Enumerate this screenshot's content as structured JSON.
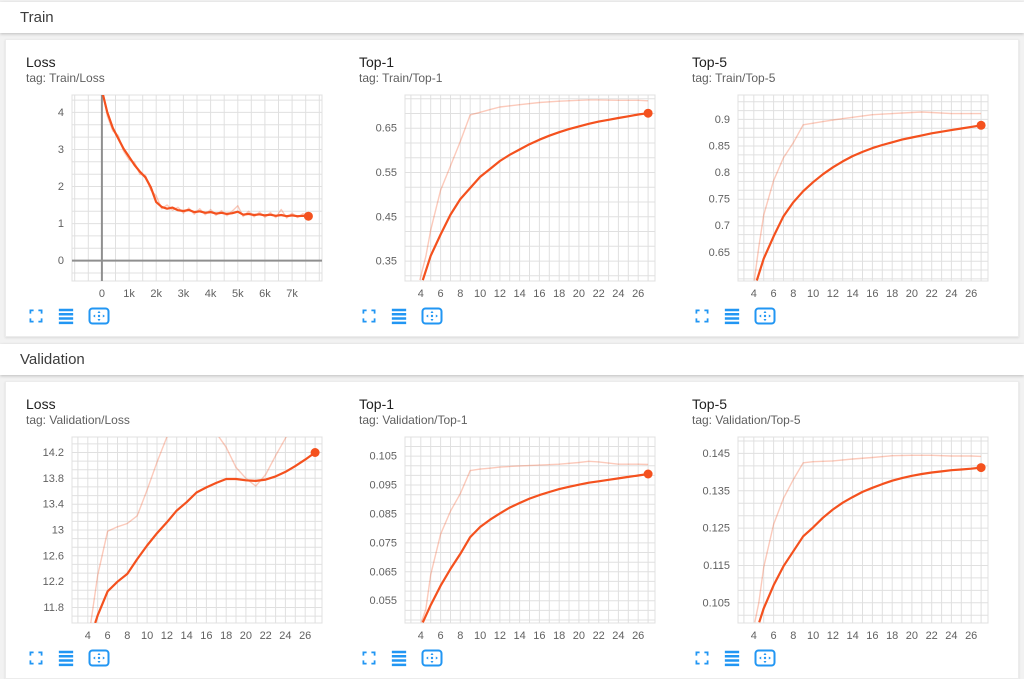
{
  "colors": {
    "accent_orange": "#f4511e",
    "raw_line_opacity": 0.3,
    "grid": "#e0e0e0",
    "zero_line": "#8f8f8f",
    "icon_blue": "#2196f3"
  },
  "sections": [
    {
      "title": "Train"
    },
    {
      "title": "Validation"
    }
  ],
  "chart_data": [
    {
      "type": "line",
      "section": 0,
      "title": "Loss",
      "tag": "tag: Train/Loss",
      "x_domain": [
        -1100,
        8100
      ],
      "y_domain": [
        -0.55,
        4.47
      ],
      "x_grid_step": 500,
      "y_grid_step": 0.33333,
      "x_ticks": {
        "values": [
          0,
          1000,
          2000,
          3000,
          4000,
          5000,
          6000,
          7000
        ],
        "labels": [
          "0",
          "1k",
          "2k",
          "3k",
          "4k",
          "5k",
          "6k",
          "7k"
        ]
      },
      "y_ticks": {
        "values": [
          0,
          1,
          2,
          3,
          4
        ],
        "labels": [
          "0",
          "1",
          "2",
          "3",
          "4"
        ]
      },
      "zero_lines": true,
      "series": [
        {
          "name": "raw",
          "x": [
            0,
            200,
            400,
            600,
            800,
            1000,
            1200,
            1400,
            1600,
            1800,
            2000,
            2200,
            2400,
            2600,
            2800,
            3000,
            3200,
            3400,
            3600,
            3800,
            4000,
            4200,
            4400,
            4600,
            4800,
            5000,
            5200,
            5400,
            5600,
            5800,
            6000,
            6200,
            6400,
            6600,
            6800,
            7000,
            7200,
            7400,
            7600
          ],
          "y": [
            4.65,
            3.9,
            3.5,
            3.38,
            2.95,
            2.72,
            2.65,
            2.33,
            2.3,
            1.9,
            1.75,
            1.4,
            1.5,
            1.36,
            1.44,
            1.28,
            1.42,
            1.25,
            1.4,
            1.24,
            1.38,
            1.22,
            1.35,
            1.21,
            1.34,
            1.48,
            1.19,
            1.33,
            1.18,
            1.31,
            1.17,
            1.3,
            1.16,
            1.38,
            1.15,
            1.28,
            1.16,
            1.27,
            1.21
          ]
        },
        {
          "name": "smoothed",
          "end_marker": true,
          "x": [
            0,
            200,
            400,
            600,
            800,
            1000,
            1200,
            1400,
            1600,
            1800,
            2000,
            2200,
            2400,
            2600,
            2800,
            3000,
            3200,
            3400,
            3600,
            3800,
            4000,
            4200,
            4400,
            4600,
            4800,
            5000,
            5200,
            5400,
            5600,
            5800,
            6000,
            6200,
            6400,
            6600,
            6800,
            7000,
            7200,
            7400,
            7600
          ],
          "y": [
            4.6,
            4.0,
            3.58,
            3.3,
            3.02,
            2.8,
            2.58,
            2.4,
            2.25,
            1.98,
            1.58,
            1.45,
            1.4,
            1.43,
            1.36,
            1.34,
            1.37,
            1.31,
            1.33,
            1.29,
            1.31,
            1.27,
            1.29,
            1.26,
            1.28,
            1.32,
            1.24,
            1.26,
            1.23,
            1.25,
            1.22,
            1.24,
            1.21,
            1.23,
            1.2,
            1.22,
            1.2,
            1.21,
            1.2
          ]
        }
      ]
    },
    {
      "type": "line",
      "section": 0,
      "title": "Top-1",
      "tag": "tag: Train/Top-1",
      "x_domain": [
        2.4,
        27.7
      ],
      "y_domain": [
        0.305,
        0.725
      ],
      "x_grid_step": 1,
      "y_grid_step": 0.033333,
      "x_ticks": {
        "values": [
          4,
          6,
          8,
          10,
          12,
          14,
          16,
          18,
          20,
          22,
          24,
          26
        ],
        "labels": [
          "4",
          "6",
          "8",
          "10",
          "12",
          "14",
          "16",
          "18",
          "20",
          "22",
          "24",
          "26"
        ]
      },
      "y_ticks": {
        "values": [
          0.35,
          0.45,
          0.55,
          0.65
        ],
        "labels": [
          "0.35",
          "0.45",
          "0.55",
          "0.65"
        ]
      },
      "zero_lines": false,
      "series": [
        {
          "name": "raw",
          "x": [
            3.9,
            4.5,
            5,
            6,
            7,
            8,
            9,
            10,
            11,
            12,
            14,
            16,
            18,
            20,
            21,
            22,
            24,
            26,
            27
          ],
          "y": [
            0.307,
            0.36,
            0.42,
            0.51,
            0.565,
            0.62,
            0.68,
            0.686,
            0.692,
            0.698,
            0.703,
            0.708,
            0.711,
            0.713,
            0.714,
            0.714,
            0.713,
            0.713,
            0.712
          ]
        },
        {
          "name": "smoothed",
          "end_marker": true,
          "x": [
            4.2,
            5,
            6,
            7,
            8,
            9,
            10,
            11,
            12,
            13,
            14,
            15,
            16,
            17,
            18,
            19,
            20,
            21,
            22,
            23,
            24,
            25,
            26,
            27
          ],
          "y": [
            0.307,
            0.362,
            0.41,
            0.455,
            0.49,
            0.515,
            0.54,
            0.558,
            0.576,
            0.59,
            0.602,
            0.614,
            0.624,
            0.633,
            0.641,
            0.648,
            0.654,
            0.66,
            0.665,
            0.669,
            0.673,
            0.677,
            0.681,
            0.684
          ]
        }
      ]
    },
    {
      "type": "line",
      "section": 0,
      "title": "Top-5",
      "tag": "tag: Train/Top-5",
      "x_domain": [
        2.4,
        27.7
      ],
      "y_domain": [
        0.596,
        0.946
      ],
      "x_grid_step": 1,
      "y_grid_step": 0.016667,
      "x_ticks": {
        "values": [
          4,
          6,
          8,
          10,
          12,
          14,
          16,
          18,
          20,
          22,
          24,
          26
        ],
        "labels": [
          "4",
          "6",
          "8",
          "10",
          "12",
          "14",
          "16",
          "18",
          "20",
          "22",
          "24",
          "26"
        ]
      },
      "y_ticks": {
        "values": [
          0.65,
          0.7,
          0.75,
          0.8,
          0.85,
          0.9
        ],
        "labels": [
          "0.65",
          "0.7",
          "0.75",
          "0.8",
          "0.85",
          "0.9"
        ]
      },
      "zero_lines": false,
      "series": [
        {
          "name": "raw",
          "x": [
            4.05,
            4.5,
            5,
            6,
            7,
            8,
            9,
            10,
            11,
            12,
            14,
            16,
            18,
            20,
            21,
            22,
            24,
            26,
            27
          ],
          "y": [
            0.597,
            0.66,
            0.72,
            0.785,
            0.828,
            0.856,
            0.89,
            0.893,
            0.896,
            0.899,
            0.904,
            0.909,
            0.911,
            0.913,
            0.914,
            0.913,
            0.911,
            0.911,
            0.911
          ]
        },
        {
          "name": "smoothed",
          "end_marker": true,
          "x": [
            4.3,
            5,
            6,
            7,
            8,
            9,
            10,
            11,
            12,
            13,
            14,
            15,
            16,
            17,
            18,
            19,
            20,
            21,
            22,
            23,
            24,
            25,
            26,
            27
          ],
          "y": [
            0.597,
            0.638,
            0.68,
            0.718,
            0.744,
            0.765,
            0.782,
            0.797,
            0.81,
            0.821,
            0.831,
            0.839,
            0.846,
            0.852,
            0.857,
            0.862,
            0.866,
            0.87,
            0.874,
            0.877,
            0.88,
            0.883,
            0.886,
            0.889
          ]
        }
      ]
    },
    {
      "type": "line",
      "section": 1,
      "title": "Loss",
      "tag": "tag: Validation/Loss",
      "x_domain": [
        2.4,
        27.7
      ],
      "y_domain": [
        11.56,
        14.44
      ],
      "x_grid_step": 1,
      "y_grid_step": 0.133333,
      "x_ticks": {
        "values": [
          4,
          6,
          8,
          10,
          12,
          14,
          16,
          18,
          20,
          22,
          24,
          26
        ],
        "labels": [
          "4",
          "6",
          "8",
          "10",
          "12",
          "14",
          "16",
          "18",
          "20",
          "22",
          "24",
          "26"
        ]
      },
      "y_ticks": {
        "values": [
          11.8,
          12.2,
          12.6,
          13,
          13.4,
          13.8,
          14.2
        ],
        "labels": [
          "11.8",
          "12.2",
          "12.6",
          "13",
          "13.4",
          "13.8",
          "14.2"
        ]
      },
      "zero_lines": false,
      "series": [
        {
          "name": "raw",
          "x": [
            4.3,
            5,
            6,
            7,
            8,
            9,
            10,
            11,
            12,
            13,
            16,
            17,
            18,
            19,
            20,
            21,
            22,
            23,
            24,
            24.6
          ],
          "y": [
            11.56,
            12.3,
            12.98,
            13.05,
            13.1,
            13.22,
            13.62,
            14.05,
            14.44,
            14.6,
            14.75,
            14.5,
            14.28,
            13.97,
            13.8,
            13.68,
            13.86,
            14.15,
            14.42,
            14.6
          ]
        },
        {
          "name": "smoothed",
          "end_marker": true,
          "x": [
            4.75,
            5,
            6,
            7,
            8,
            9,
            10,
            11,
            12,
            13,
            14,
            15,
            16,
            17,
            18,
            19,
            20,
            21,
            22,
            23,
            24,
            25,
            26,
            27
          ],
          "y": [
            11.56,
            11.68,
            12.05,
            12.2,
            12.32,
            12.55,
            12.76,
            12.95,
            13.12,
            13.3,
            13.43,
            13.58,
            13.66,
            13.73,
            13.79,
            13.79,
            13.77,
            13.76,
            13.78,
            13.83,
            13.9,
            13.99,
            14.09,
            14.2
          ]
        }
      ]
    },
    {
      "type": "line",
      "section": 1,
      "title": "Top-1",
      "tag": "tag: Validation/Top-1",
      "x_domain": [
        2.4,
        27.7
      ],
      "y_domain": [
        0.0473,
        0.1116
      ],
      "x_grid_step": 1,
      "y_grid_step": 0.0033333,
      "x_ticks": {
        "values": [
          4,
          6,
          8,
          10,
          12,
          14,
          16,
          18,
          20,
          22,
          24,
          26
        ],
        "labels": [
          "4",
          "6",
          "8",
          "10",
          "12",
          "14",
          "16",
          "18",
          "20",
          "22",
          "24",
          "26"
        ]
      },
      "y_ticks": {
        "values": [
          0.055,
          0.065,
          0.075,
          0.085,
          0.095,
          0.105
        ],
        "labels": [
          "0.055",
          "0.065",
          "0.075",
          "0.085",
          "0.095",
          "0.105"
        ]
      },
      "zero_lines": false,
      "series": [
        {
          "name": "raw",
          "x": [
            4.05,
            4.5,
            5,
            6,
            7,
            8,
            9,
            10,
            11,
            12,
            14,
            16,
            18,
            20,
            21,
            22,
            24,
            26,
            27
          ],
          "y": [
            0.0475,
            0.052,
            0.064,
            0.078,
            0.086,
            0.092,
            0.1,
            0.1005,
            0.1008,
            0.1012,
            0.1016,
            0.1019,
            0.1022,
            0.1028,
            0.1032,
            0.103,
            0.1022,
            0.1022,
            0.1021
          ]
        },
        {
          "name": "smoothed",
          "end_marker": true,
          "x": [
            4.2,
            5,
            6,
            7,
            8,
            9,
            10,
            11,
            12,
            13,
            14,
            15,
            16,
            17,
            18,
            19,
            20,
            21,
            22,
            23,
            24,
            25,
            26,
            27
          ],
          "y": [
            0.0475,
            0.0535,
            0.0602,
            0.066,
            0.0712,
            0.077,
            0.0805,
            0.083,
            0.0852,
            0.0872,
            0.0888,
            0.0903,
            0.0915,
            0.0926,
            0.0936,
            0.0944,
            0.0951,
            0.0958,
            0.0963,
            0.0968,
            0.0973,
            0.0978,
            0.0983,
            0.0988
          ]
        }
      ]
    },
    {
      "type": "line",
      "section": 1,
      "title": "Top-5",
      "tag": "tag: Validation/Top-5",
      "x_domain": [
        2.4,
        27.7
      ],
      "y_domain": [
        0.0996,
        0.1494
      ],
      "x_grid_step": 1,
      "y_grid_step": 0.0033333,
      "x_ticks": {
        "values": [
          4,
          6,
          8,
          10,
          12,
          14,
          16,
          18,
          20,
          22,
          24,
          26
        ],
        "labels": [
          "4",
          "6",
          "8",
          "10",
          "12",
          "14",
          "16",
          "18",
          "20",
          "22",
          "24",
          "26"
        ]
      },
      "y_ticks": {
        "values": [
          0.105,
          0.115,
          0.125,
          0.135,
          0.145
        ],
        "labels": [
          "0.105",
          "0.115",
          "0.125",
          "0.135",
          "0.145"
        ]
      },
      "zero_lines": false,
      "series": [
        {
          "name": "raw",
          "x": [
            4.1,
            4.5,
            5,
            6,
            7,
            8,
            9,
            10,
            12,
            14,
            16,
            18,
            20,
            22,
            24,
            26,
            27
          ],
          "y": [
            0.0998,
            0.105,
            0.1145,
            0.126,
            0.133,
            0.138,
            0.1425,
            0.1428,
            0.143,
            0.1435,
            0.1439,
            0.1444,
            0.1445,
            0.1445,
            0.1443,
            0.1443,
            0.1442
          ]
        },
        {
          "name": "smoothed",
          "end_marker": true,
          "x": [
            4.55,
            5,
            6,
            7,
            8,
            9,
            10,
            11,
            12,
            13,
            14,
            15,
            16,
            17,
            18,
            19,
            20,
            21,
            22,
            23,
            24,
            25,
            26,
            27
          ],
          "y": [
            0.0998,
            0.1035,
            0.1097,
            0.1148,
            0.1188,
            0.1228,
            0.1252,
            0.1278,
            0.13,
            0.1318,
            0.1333,
            0.1347,
            0.1358,
            0.1368,
            0.1377,
            0.1384,
            0.139,
            0.1395,
            0.1399,
            0.1402,
            0.1405,
            0.1407,
            0.1409,
            0.1412
          ]
        }
      ]
    }
  ]
}
